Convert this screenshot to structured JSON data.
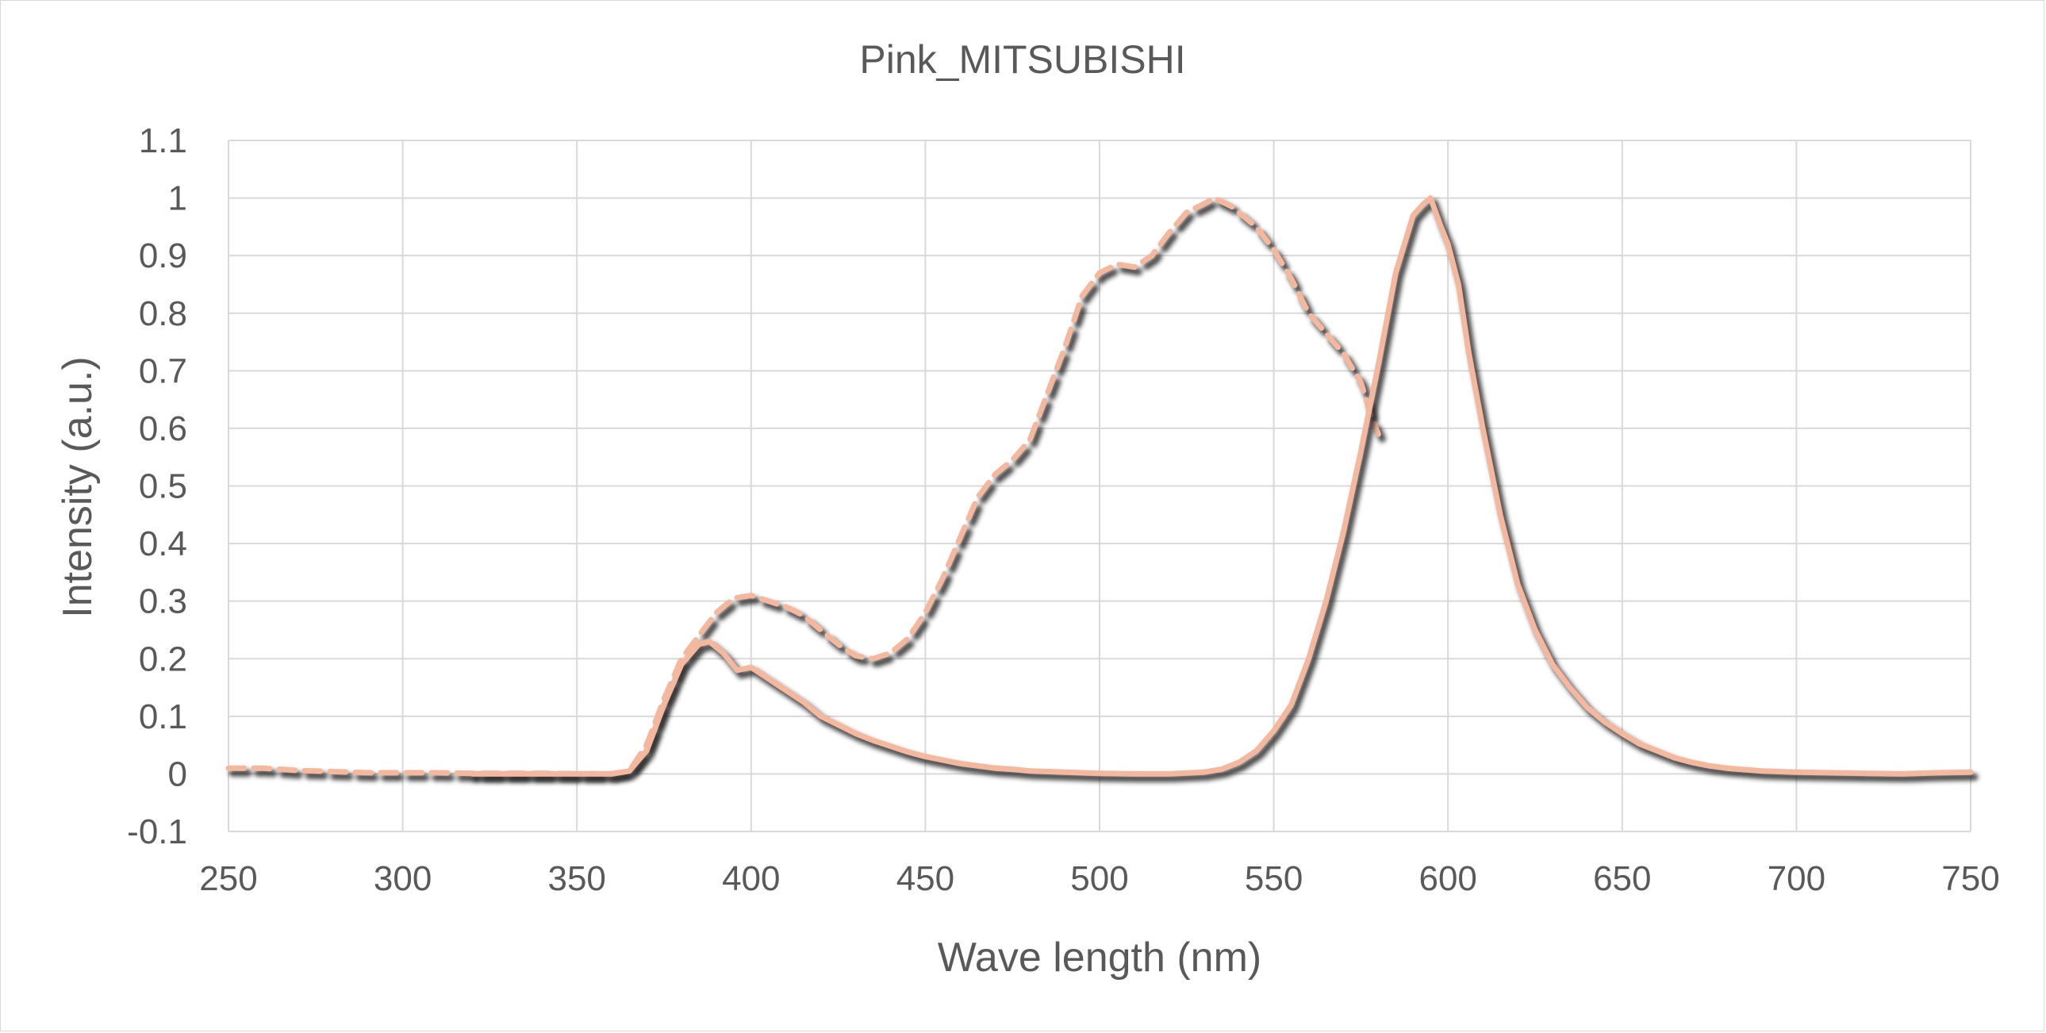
{
  "chart_data": {
    "type": "line",
    "title": "Pink_MITSUBISHI",
    "xlabel": "Wave length (nm)",
    "ylabel": "Intensity (a.u.)",
    "xlim": [
      250,
      750
    ],
    "ylim": [
      -0.1,
      1.1
    ],
    "x_ticks": [
      250,
      300,
      350,
      400,
      450,
      500,
      550,
      600,
      650,
      700,
      750
    ],
    "y_ticks": [
      -0.1,
      0,
      0.1,
      0.2,
      0.3,
      0.4,
      0.5,
      0.6,
      0.7,
      0.8,
      0.9,
      1,
      1.1
    ],
    "y_tick_labels": [
      "-0.1",
      "0",
      "0.1",
      "0.2",
      "0.3",
      "0.4",
      "0.5",
      "0.6",
      "0.7",
      "0.8",
      "0.9",
      "1",
      "1.1"
    ],
    "grid": true,
    "legend": "none",
    "colors": {
      "line": "#f4b89e",
      "shadow": "#2a2a2a",
      "grid": "#d9d9d9",
      "text": "#595959"
    },
    "series": [
      {
        "style": "dashed",
        "points": [
          [
            250,
            0.01
          ],
          [
            260,
            0.01
          ],
          [
            270,
            0.006
          ],
          [
            280,
            0.004
          ],
          [
            290,
            0.002
          ],
          [
            300,
            0.002
          ],
          [
            310,
            0.002
          ],
          [
            320,
            0.001
          ],
          [
            330,
            0.001
          ],
          [
            340,
            0.001
          ],
          [
            350,
            0.0
          ],
          [
            360,
            0.0
          ],
          [
            365,
            0.005
          ],
          [
            370,
            0.05
          ],
          [
            375,
            0.13
          ],
          [
            380,
            0.2
          ],
          [
            385,
            0.24
          ],
          [
            390,
            0.28
          ],
          [
            395,
            0.305
          ],
          [
            400,
            0.31
          ],
          [
            405,
            0.3
          ],
          [
            410,
            0.29
          ],
          [
            415,
            0.275
          ],
          [
            420,
            0.25
          ],
          [
            425,
            0.225
          ],
          [
            430,
            0.205
          ],
          [
            435,
            0.2
          ],
          [
            440,
            0.21
          ],
          [
            445,
            0.235
          ],
          [
            450,
            0.28
          ],
          [
            455,
            0.34
          ],
          [
            460,
            0.41
          ],
          [
            465,
            0.48
          ],
          [
            470,
            0.52
          ],
          [
            475,
            0.545
          ],
          [
            480,
            0.58
          ],
          [
            485,
            0.66
          ],
          [
            490,
            0.74
          ],
          [
            495,
            0.83
          ],
          [
            500,
            0.87
          ],
          [
            505,
            0.885
          ],
          [
            510,
            0.88
          ],
          [
            515,
            0.9
          ],
          [
            520,
            0.94
          ],
          [
            525,
            0.975
          ],
          [
            530,
            0.99
          ],
          [
            533,
            1.0
          ],
          [
            538,
            0.985
          ],
          [
            545,
            0.95
          ],
          [
            550,
            0.91
          ],
          [
            555,
            0.86
          ],
          [
            560,
            0.8
          ],
          [
            565,
            0.765
          ],
          [
            570,
            0.73
          ],
          [
            575,
            0.68
          ],
          [
            578,
            0.62
          ],
          [
            580,
            0.59
          ]
        ]
      },
      {
        "style": "solid",
        "points": [
          [
            320,
            0.0
          ],
          [
            330,
            0.0
          ],
          [
            340,
            0.0
          ],
          [
            350,
            0.0
          ],
          [
            360,
            0.0
          ],
          [
            365,
            0.005
          ],
          [
            370,
            0.04
          ],
          [
            375,
            0.12
          ],
          [
            380,
            0.19
          ],
          [
            385,
            0.225
          ],
          [
            388,
            0.23
          ],
          [
            392,
            0.21
          ],
          [
            396,
            0.18
          ],
          [
            400,
            0.185
          ],
          [
            405,
            0.165
          ],
          [
            410,
            0.145
          ],
          [
            415,
            0.125
          ],
          [
            420,
            0.1
          ],
          [
            425,
            0.085
          ],
          [
            430,
            0.07
          ],
          [
            435,
            0.058
          ],
          [
            440,
            0.048
          ],
          [
            445,
            0.038
          ],
          [
            450,
            0.03
          ],
          [
            455,
            0.024
          ],
          [
            460,
            0.018
          ],
          [
            465,
            0.014
          ],
          [
            470,
            0.01
          ],
          [
            475,
            0.008
          ],
          [
            480,
            0.005
          ],
          [
            490,
            0.003
          ],
          [
            500,
            0.001
          ],
          [
            510,
            0.0
          ],
          [
            520,
            0.0
          ],
          [
            530,
            0.003
          ],
          [
            535,
            0.008
          ],
          [
            540,
            0.02
          ],
          [
            545,
            0.04
          ],
          [
            550,
            0.075
          ],
          [
            555,
            0.12
          ],
          [
            560,
            0.2
          ],
          [
            565,
            0.3
          ],
          [
            570,
            0.42
          ],
          [
            575,
            0.56
          ],
          [
            580,
            0.71
          ],
          [
            585,
            0.87
          ],
          [
            590,
            0.97
          ],
          [
            593,
            0.99
          ],
          [
            595,
            1.0
          ],
          [
            598,
            0.95
          ],
          [
            600,
            0.92
          ],
          [
            603,
            0.85
          ],
          [
            606,
            0.73
          ],
          [
            610,
            0.6
          ],
          [
            615,
            0.45
          ],
          [
            620,
            0.33
          ],
          [
            625,
            0.25
          ],
          [
            630,
            0.19
          ],
          [
            635,
            0.15
          ],
          [
            640,
            0.115
          ],
          [
            645,
            0.09
          ],
          [
            650,
            0.07
          ],
          [
            655,
            0.052
          ],
          [
            660,
            0.04
          ],
          [
            665,
            0.028
          ],
          [
            670,
            0.02
          ],
          [
            675,
            0.014
          ],
          [
            680,
            0.01
          ],
          [
            690,
            0.005
          ],
          [
            700,
            0.003
          ],
          [
            710,
            0.002
          ],
          [
            720,
            0.001
          ],
          [
            730,
            0.0
          ],
          [
            740,
            0.002
          ],
          [
            750,
            0.003
          ]
        ]
      }
    ]
  }
}
